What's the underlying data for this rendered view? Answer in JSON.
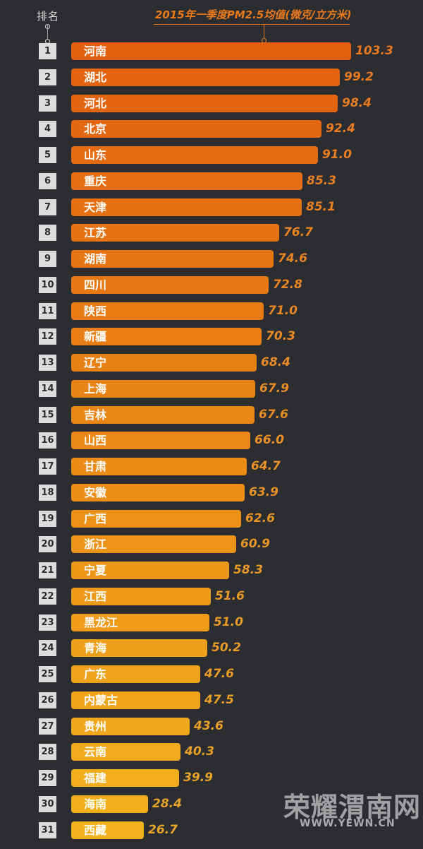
{
  "header": {
    "rank_label": "排名",
    "title": "2015年一季度PM2.5均值(微克/立方米)"
  },
  "watermark": {
    "name": "荣耀渭南网",
    "url": "WWW.YEWN.CN"
  },
  "colors": {
    "background": "#2b2d31",
    "bar_start": "#e2600f",
    "bar_end": "#f2b21e",
    "rank_box": "#dcdcdc"
  },
  "chart_data": {
    "type": "bar",
    "orientation": "horizontal",
    "title": "2015年一季度PM2.5均值(微克/立方米)",
    "ranks": [
      1,
      2,
      3,
      4,
      5,
      6,
      7,
      8,
      9,
      10,
      11,
      12,
      13,
      14,
      15,
      16,
      17,
      18,
      19,
      20,
      21,
      22,
      23,
      24,
      25,
      26,
      27,
      28,
      29,
      30,
      31
    ],
    "categories": [
      "河南",
      "湖北",
      "河北",
      "北京",
      "山东",
      "重庆",
      "天津",
      "江苏",
      "湖南",
      "四川",
      "陕西",
      "新疆",
      "辽宁",
      "上海",
      "吉林",
      "山西",
      "甘肃",
      "安徽",
      "广西",
      "浙江",
      "宁夏",
      "江西",
      "黑龙江",
      "青海",
      "广东",
      "内蒙古",
      "贵州",
      "云南",
      "福建",
      "海南",
      "西藏"
    ],
    "values": [
      103.3,
      99.2,
      98.4,
      92.4,
      91.0,
      85.3,
      85.1,
      76.7,
      74.6,
      72.8,
      71.0,
      70.3,
      68.4,
      67.9,
      67.6,
      66.0,
      64.7,
      63.9,
      62.6,
      60.9,
      58.3,
      51.6,
      51.0,
      50.2,
      47.6,
      47.5,
      43.6,
      40.3,
      39.9,
      28.4,
      26.7
    ],
    "value_labels": [
      "103.3",
      "99.2",
      "98.4",
      "92.4",
      "91.0",
      "85.3",
      "85.1",
      "76.7",
      "74.6",
      "72.8",
      "71.0",
      "70.3",
      "68.4",
      "67.9",
      "67.6",
      "66.0",
      "64.7",
      "63.9",
      "62.6",
      "60.9",
      "58.3",
      "51.6",
      "51.0",
      "50.2",
      "47.6",
      "47.5",
      "43.6",
      "40.3",
      "39.9",
      "28.4",
      "26.7"
    ],
    "xlim": [
      0,
      103.3
    ],
    "grid": false,
    "legend": "none"
  }
}
